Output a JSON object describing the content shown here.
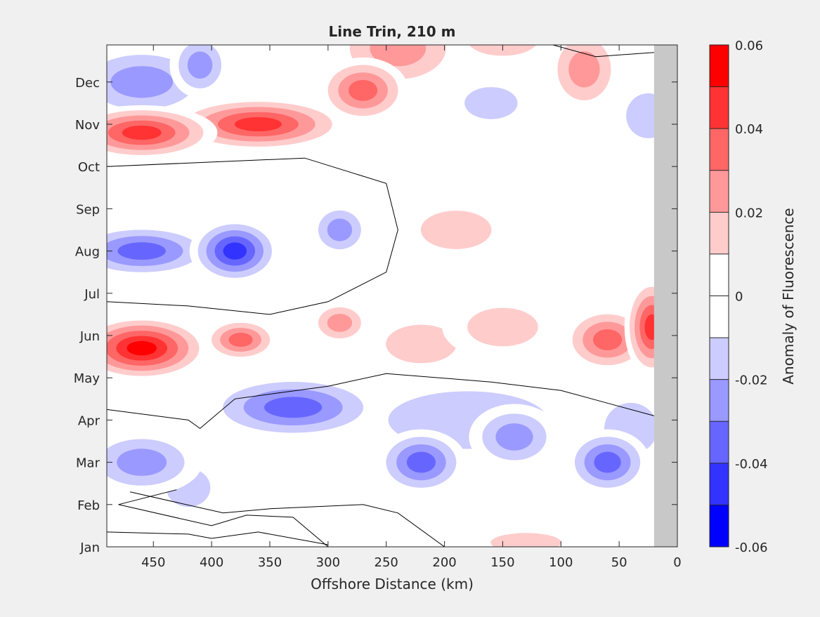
{
  "chart_data": {
    "type": "heatmap",
    "subtype": "filled-contour",
    "title": "Line Trin, 210 m",
    "xlabel": "Offshore Distance (km)",
    "ylabel": "",
    "x_direction": "reversed",
    "xlim": [
      0,
      490
    ],
    "x_ticks": [
      450,
      400,
      350,
      300,
      250,
      200,
      150,
      100,
      50,
      0
    ],
    "y_ticks": [
      "Jan",
      "Feb",
      "Mar",
      "Apr",
      "May",
      "Jun",
      "Jul",
      "Aug",
      "Sep",
      "Oct",
      "Nov",
      "Dec"
    ],
    "ylim": [
      "Jan",
      "Dec (end of year)"
    ],
    "colorbar": {
      "label": "Anomaly of Fluorescence",
      "levels": [
        -0.06,
        -0.05,
        -0.04,
        -0.03,
        -0.02,
        -0.01,
        0,
        0.01,
        0.02,
        0.03,
        0.04,
        0.05,
        0.06
      ],
      "tick_labels": [
        "-0.06",
        "-0.04",
        "-0.02",
        "0",
        "0.02",
        "0.04",
        "0.06"
      ],
      "tick_values": [
        -0.06,
        -0.04,
        -0.02,
        0,
        0.02,
        0.04,
        0.06
      ],
      "colors": [
        "#0000ff",
        "#3333ff",
        "#6666ff",
        "#9999ff",
        "#ccccff",
        "#ffffff",
        "#ffffff",
        "#ffcccc",
        "#ff9999",
        "#ff6666",
        "#ff3333",
        "#ff0000"
      ]
    },
    "no_data_region": {
      "x_range_km": [
        0,
        20
      ],
      "color": "#c8c8c8"
    },
    "contour_line_level": 0,
    "grid": false
  },
  "colors": {
    "figure_background": "#f0f0f0",
    "axes_background": "#ffffff",
    "red": "#ff0000",
    "blue": "#0000ff",
    "no_data": "#c8c8c8"
  }
}
